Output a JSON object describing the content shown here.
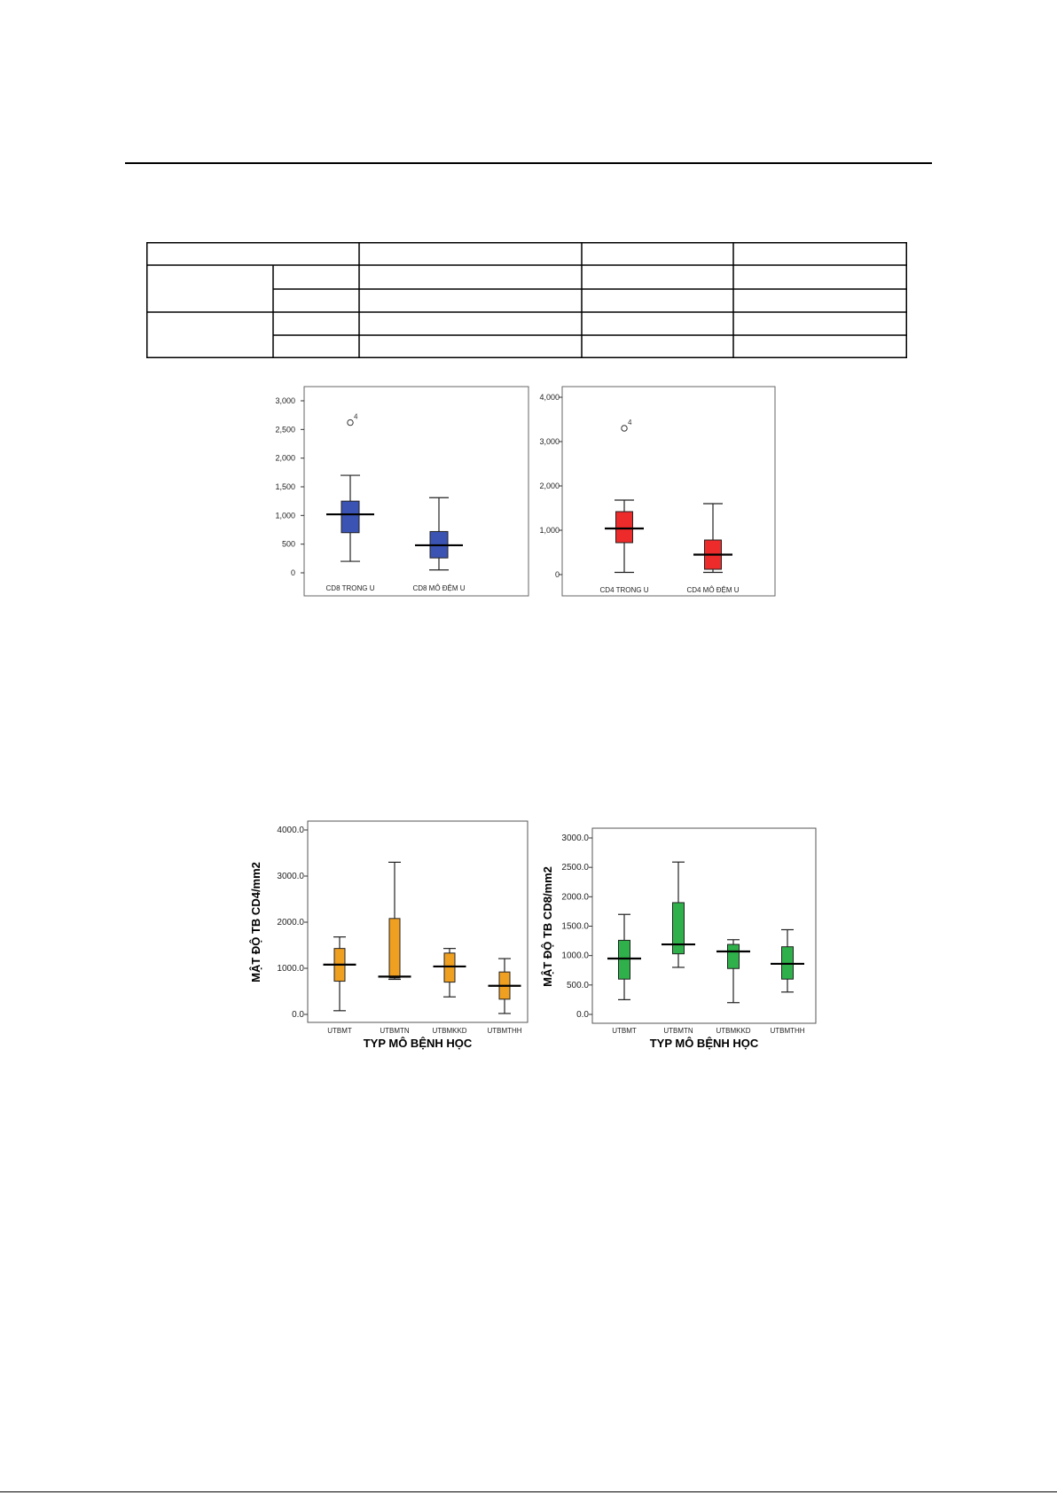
{
  "chart_data": [
    {
      "type": "box",
      "y_tick_labels": [
        "0",
        "500",
        "1,000",
        "1,500",
        "2,000",
        "2,500",
        "3,000"
      ],
      "ylim": [
        0,
        3000
      ],
      "categories": [
        "CD8 TRONG U",
        "CD8 MÔ ĐỆM U"
      ],
      "color": "#3b54b3",
      "boxes": [
        {
          "min": 200,
          "q1": 700,
          "median": 1020,
          "q3": 1250,
          "max": 1700
        },
        {
          "min": 50,
          "q1": 260,
          "median": 480,
          "q3": 720,
          "max": 1310
        }
      ],
      "outliers": [
        {
          "series": 0,
          "value": 2620,
          "label": "4"
        }
      ],
      "grid": false
    },
    {
      "type": "box",
      "y_tick_labels": [
        "0",
        "1,000",
        "2,000",
        "3,000",
        "4,000"
      ],
      "ylim": [
        0,
        4000
      ],
      "categories": [
        "CD4 TRONG U",
        "CD4 MÔ ĐỆM U"
      ],
      "color": "#ee2b2b",
      "boxes": [
        {
          "min": 50,
          "q1": 720,
          "median": 1040,
          "q3": 1420,
          "max": 1680
        },
        {
          "min": 50,
          "q1": 120,
          "median": 450,
          "q3": 780,
          "max": 1600
        }
      ],
      "outliers": [
        {
          "series": 0,
          "value": 3300,
          "label": "4"
        }
      ],
      "grid": false
    },
    {
      "type": "box",
      "ylabel": "MẬT ĐỘ TB CD4/mm2",
      "xlabel": "TYP MÔ BỆNH HỌC",
      "y_tick_labels": [
        "0.0",
        "1000.0",
        "2000.0",
        "3000.0",
        "4000.0"
      ],
      "ylim": [
        0,
        4000
      ],
      "categories": [
        "UTBMT",
        "UTBMTN",
        "UTBMKKD",
        "UTBMTHH"
      ],
      "color": "#f0a020",
      "boxes": [
        {
          "min": 80,
          "q1": 720,
          "median": 1080,
          "q3": 1430,
          "max": 1680
        },
        {
          "min": 760,
          "q1": 790,
          "median": 820,
          "q3": 2080,
          "max": 3300
        },
        {
          "min": 380,
          "q1": 700,
          "median": 1040,
          "q3": 1330,
          "max": 1430
        },
        {
          "min": 20,
          "q1": 330,
          "median": 620,
          "q3": 920,
          "max": 1210
        }
      ],
      "grid": false
    },
    {
      "type": "box",
      "ylabel": "MẬT ĐỘ TB CD8/mm2",
      "xlabel": "TYP MÔ BỆNH HỌC",
      "y_tick_labels": [
        "0.0",
        "500.0",
        "1000.0",
        "1500.0",
        "2000.0",
        "2500.0",
        "3000.0"
      ],
      "ylim": [
        0,
        3000
      ],
      "categories": [
        "UTBMT",
        "UTBMTN",
        "UTBMKKD",
        "UTBMTHH"
      ],
      "color": "#2fb04a",
      "boxes": [
        {
          "min": 250,
          "q1": 600,
          "median": 950,
          "q3": 1260,
          "max": 1700
        },
        {
          "min": 800,
          "q1": 1030,
          "median": 1190,
          "q3": 1900,
          "max": 2590
        },
        {
          "min": 200,
          "q1": 780,
          "median": 1070,
          "q3": 1190,
          "max": 1270
        },
        {
          "min": 380,
          "q1": 600,
          "median": 860,
          "q3": 1150,
          "max": 1440
        }
      ],
      "grid": false
    }
  ]
}
